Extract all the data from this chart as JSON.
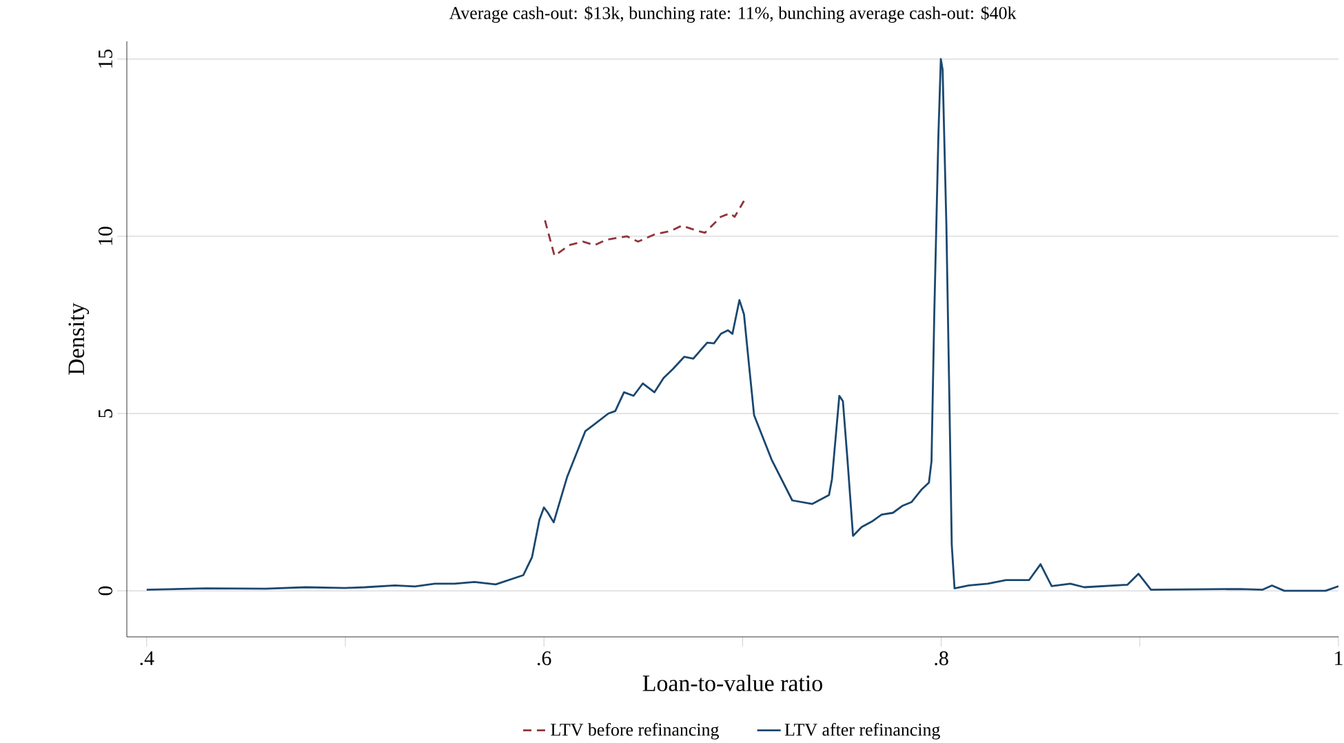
{
  "chart_data": {
    "type": "line",
    "title": "Average cash-out: $13k, bunching rate: 11%, bunching average cash-out: $40k",
    "xlabel": "Loan-to-value ratio",
    "ylabel": "Density",
    "xlim": [
      0.39,
      1.0
    ],
    "ylim": [
      -1.3,
      15.5
    ],
    "xticks": [
      {
        "value": 0.4,
        "label": ".4"
      },
      {
        "value": 0.5,
        "label": null
      },
      {
        "value": 0.6,
        "label": ".6"
      },
      {
        "value": 0.7,
        "label": null
      },
      {
        "value": 0.8,
        "label": ".8"
      },
      {
        "value": 0.9,
        "label": null
      },
      {
        "value": 1.0,
        "label": "1"
      }
    ],
    "yticks": [
      0,
      5,
      10,
      15
    ],
    "grid": "y",
    "legend": "bottom",
    "marker": "none",
    "series": [
      {
        "name": "LTV before refinancing",
        "color": "#90353b",
        "line_style": "dashed",
        "x": [
          0.6005,
          0.6053,
          0.6127,
          0.6197,
          0.6255,
          0.6312,
          0.6417,
          0.6474,
          0.6556,
          0.6637,
          0.6694,
          0.6776,
          0.681,
          0.6891,
          0.6937,
          0.696,
          0.7007
        ],
        "values": [
          10.45,
          9.45,
          9.75,
          9.85,
          9.75,
          9.9,
          10.0,
          9.85,
          10.05,
          10.15,
          10.3,
          10.15,
          10.1,
          10.55,
          10.65,
          10.55,
          11.0
        ]
      },
      {
        "name": "LTV after refinancing",
        "color": "#1a476f",
        "line_style": "solid",
        "x": [
          0.4,
          0.43,
          0.46,
          0.48,
          0.5,
          0.51,
          0.525,
          0.535,
          0.545,
          0.555,
          0.565,
          0.5757,
          0.5896,
          0.594,
          0.5977,
          0.6,
          0.602,
          0.6049,
          0.6116,
          0.6208,
          0.6255,
          0.6324,
          0.6359,
          0.6403,
          0.6451,
          0.6498,
          0.6556,
          0.6602,
          0.6648,
          0.6706,
          0.6752,
          0.6822,
          0.6856,
          0.6891,
          0.6926,
          0.6949,
          0.6984,
          0.7007,
          0.703,
          0.7058,
          0.7146,
          0.725,
          0.735,
          0.7435,
          0.745,
          0.7487,
          0.7505,
          0.7528,
          0.7556,
          0.76,
          0.765,
          0.77,
          0.7757,
          0.7806,
          0.785,
          0.79,
          0.7938,
          0.7951,
          0.7965,
          0.7986,
          0.7998,
          0.8007,
          0.8026,
          0.8042,
          0.8053,
          0.8067,
          0.8139,
          0.8234,
          0.8326,
          0.8442,
          0.85,
          0.8556,
          0.865,
          0.872,
          0.8937,
          0.8993,
          0.9056,
          0.9507,
          0.9618,
          0.9665,
          0.9727,
          0.9935,
          1.0
        ],
        "values": [
          0.03,
          0.07,
          0.06,
          0.1,
          0.08,
          0.1,
          0.15,
          0.12,
          0.2,
          0.2,
          0.25,
          0.18,
          0.44,
          0.95,
          2.0,
          2.35,
          2.2,
          1.93,
          3.2,
          4.5,
          4.7,
          5.0,
          5.07,
          5.6,
          5.5,
          5.85,
          5.6,
          6.0,
          6.25,
          6.6,
          6.55,
          7.0,
          6.98,
          7.25,
          7.35,
          7.25,
          8.2,
          7.8,
          6.5,
          4.95,
          3.7,
          2.55,
          2.45,
          2.7,
          3.15,
          5.5,
          5.35,
          3.7,
          1.55,
          1.8,
          1.95,
          2.15,
          2.2,
          2.4,
          2.5,
          2.85,
          3.05,
          3.65,
          7.8,
          12.9,
          15.0,
          14.7,
          10.3,
          5.1,
          1.3,
          0.07,
          0.15,
          0.2,
          0.3,
          0.3,
          0.75,
          0.13,
          0.2,
          0.1,
          0.17,
          0.48,
          0.03,
          0.05,
          0.03,
          0.15,
          0.0,
          0.0,
          0.13
        ]
      }
    ]
  }
}
